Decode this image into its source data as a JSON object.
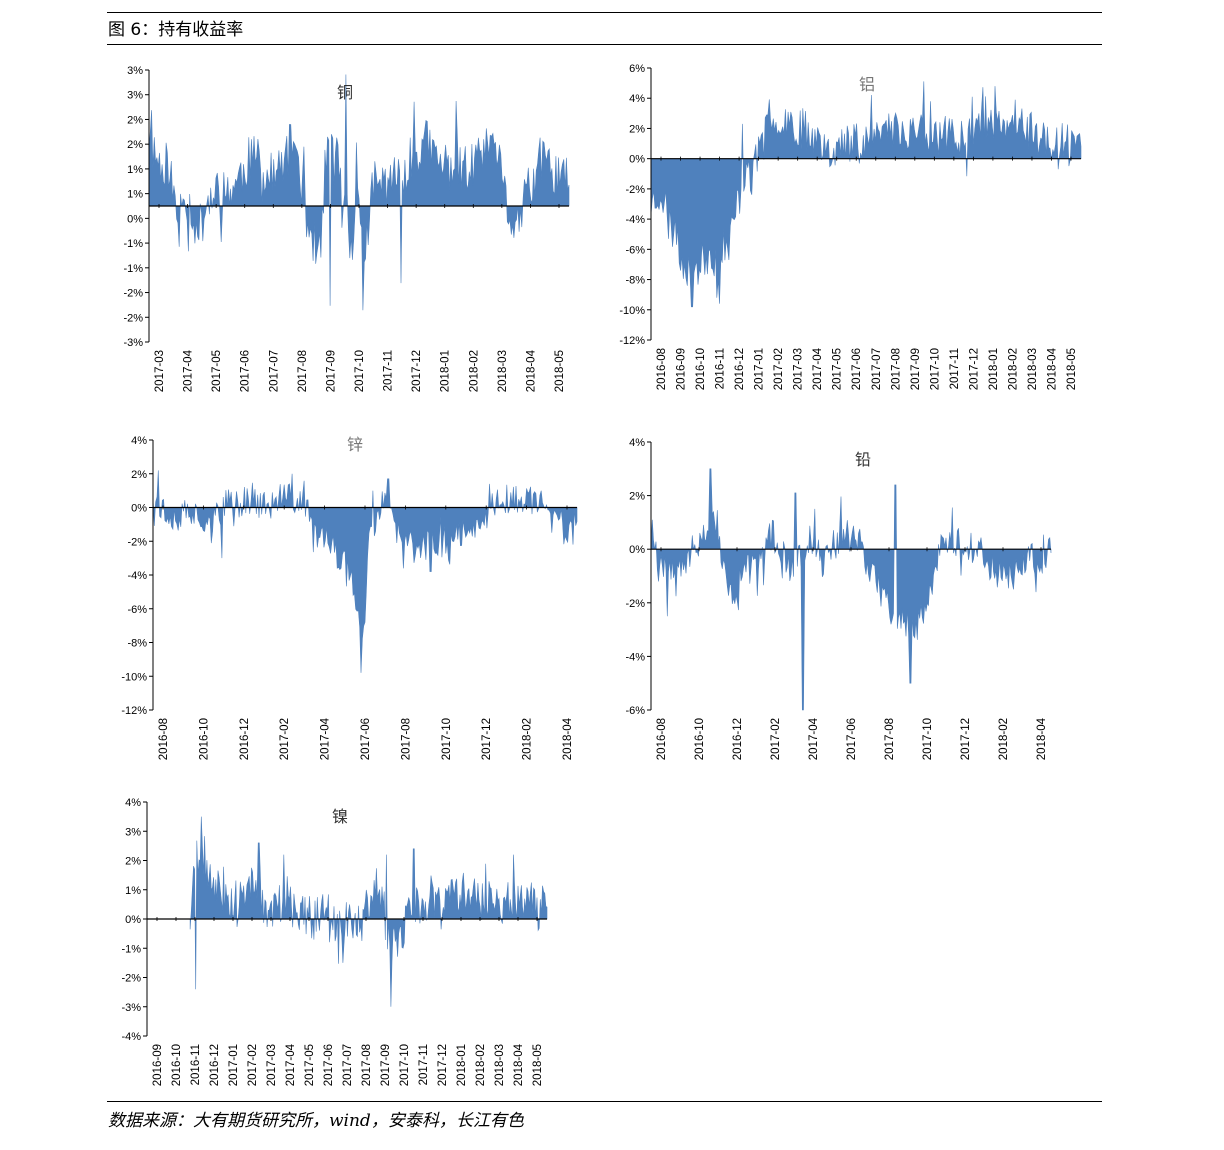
{
  "figure": {
    "title": "图 6：持有收益率",
    "source": "数据来源：大有期货研究所，wind，安泰科，长江有色"
  },
  "chart_data": [
    {
      "type": "area",
      "title": "铜",
      "color": "#4f81bd",
      "title_color": "#333333",
      "y_tick_labels": [
        "3%",
        "3%",
        "2%",
        "2%",
        "1%",
        "1%",
        "0%",
        "-1%",
        "-1%",
        "-2%",
        "-2%",
        "-3%"
      ],
      "ylim": [
        -3,
        3
      ],
      "x_tick_labels": [
        "2017-03",
        "2017-04",
        "2017-05",
        "2017-06",
        "2017-07",
        "2017-08",
        "2017-09",
        "2017-10",
        "2017-11",
        "2017-12",
        "2018-01",
        "2018-02",
        "2018-03",
        "2018-04",
        "2018-05"
      ],
      "xlim": [
        0,
        14.4
      ],
      "anchors": [
        [
          0,
          1.5
        ],
        [
          0.3,
          1.0
        ],
        [
          0.7,
          0.9
        ],
        [
          1.0,
          -0.5
        ],
        [
          1.2,
          0.4
        ],
        [
          1.7,
          -0.6
        ],
        [
          2.0,
          0.1
        ],
        [
          2.4,
          0.2
        ],
        [
          3.0,
          0.5
        ],
        [
          3.5,
          1.1
        ],
        [
          4.0,
          0.6
        ],
        [
          4.4,
          0.7
        ],
        [
          5.0,
          1.5
        ],
        [
          5.4,
          -0.2
        ],
        [
          5.8,
          -1.2
        ],
        [
          6.3,
          1.7
        ],
        [
          6.7,
          0.0
        ],
        [
          7.0,
          -0.8
        ],
        [
          7.2,
          0.2
        ],
        [
          7.4,
          -1.3
        ],
        [
          7.6,
          0.3
        ],
        [
          8.0,
          0.5
        ],
        [
          8.5,
          0.6
        ],
        [
          9.0,
          1.0
        ],
        [
          9.5,
          1.4
        ],
        [
          10.0,
          0.9
        ],
        [
          10.5,
          1.0
        ],
        [
          11.0,
          0.8
        ],
        [
          11.5,
          1.1
        ],
        [
          12.0,
          0.9
        ],
        [
          12.4,
          -0.4
        ],
        [
          12.7,
          -0.3
        ],
        [
          13.0,
          0.3
        ],
        [
          13.4,
          1.0
        ],
        [
          14.0,
          0.7
        ],
        [
          14.4,
          0.5
        ]
      ],
      "spikes": [
        [
          6.2,
          -2.2
        ],
        [
          6.75,
          2.9
        ],
        [
          7.35,
          -2.3
        ],
        [
          7.1,
          1.4
        ],
        [
          9.1,
          2.3
        ],
        [
          8.65,
          -1.7
        ],
        [
          1.05,
          -0.9
        ],
        [
          1.35,
          -1.0
        ],
        [
          11.8,
          1.6
        ]
      ],
      "noise": 0.55,
      "seed": 11
    },
    {
      "type": "area",
      "title": "铝",
      "color": "#4f81bd",
      "title_color": "#777777",
      "y_tick_labels": [
        "6%",
        "4%",
        "2%",
        "0%",
        "-2%",
        "-4%",
        "-6%",
        "-8%",
        "-10%",
        "-12%"
      ],
      "ylim": [
        -12,
        6
      ],
      "x_tick_labels": [
        "2016-08",
        "2016-09",
        "2016-10",
        "2016-11",
        "2016-12",
        "2017-01",
        "2017-02",
        "2017-03",
        "2017-04",
        "2017-05",
        "2017-06",
        "2017-07",
        "2017-08",
        "2017-09",
        "2017-10",
        "2017-11",
        "2017-12",
        "2018-01",
        "2018-02",
        "2018-03",
        "2018-04",
        "2018-05"
      ],
      "xlim": [
        0,
        21.5
      ],
      "anchors": [
        [
          0,
          -3.0
        ],
        [
          0.5,
          -2.0
        ],
        [
          1.0,
          -4.5
        ],
        [
          1.5,
          -6.5
        ],
        [
          2.0,
          -7.5
        ],
        [
          2.5,
          -7.0
        ],
        [
          3.0,
          -6.0
        ],
        [
          3.5,
          -7.5
        ],
        [
          4.0,
          -5.0
        ],
        [
          4.5,
          -2.0
        ],
        [
          4.7,
          -0.5
        ],
        [
          5.0,
          -1.5
        ],
        [
          5.3,
          0.3
        ],
        [
          5.6,
          1.0
        ],
        [
          6.0,
          2.5
        ],
        [
          6.5,
          3.0
        ],
        [
          7.0,
          2.5
        ],
        [
          7.5,
          2.0
        ],
        [
          8.0,
          1.8
        ],
        [
          8.5,
          1.0
        ],
        [
          9.0,
          0.8
        ],
        [
          9.5,
          0.9
        ],
        [
          10.0,
          1.0
        ],
        [
          10.5,
          1.3
        ],
        [
          11.0,
          1.6
        ],
        [
          11.5,
          1.8
        ],
        [
          12.0,
          2.3
        ],
        [
          12.5,
          1.8
        ],
        [
          13.0,
          2.0
        ],
        [
          13.5,
          1.8
        ],
        [
          14.0,
          1.8
        ],
        [
          14.5,
          1.4
        ],
        [
          15.0,
          1.5
        ],
        [
          15.5,
          1.5
        ],
        [
          16.0,
          2.2
        ],
        [
          16.5,
          2.5
        ],
        [
          17.0,
          2.8
        ],
        [
          17.5,
          1.6
        ],
        [
          18.0,
          2.2
        ],
        [
          18.5,
          1.4
        ],
        [
          19.0,
          1.7
        ],
        [
          19.5,
          1.5
        ],
        [
          20.0,
          1.1
        ],
        [
          20.5,
          1.0
        ],
        [
          21.0,
          0.8
        ],
        [
          21.5,
          0.7
        ]
      ],
      "spikes": [
        [
          2.05,
          -9.8
        ],
        [
          3.45,
          -9.6
        ],
        [
          3.3,
          -9.2
        ],
        [
          4.55,
          2.3
        ],
        [
          17.2,
          4.8
        ],
        [
          18.2,
          3.9
        ],
        [
          14.0,
          3.8
        ],
        [
          20.35,
          -0.7
        ]
      ],
      "noise": 1.4,
      "seed": 23
    },
    {
      "type": "area",
      "title": "锌",
      "color": "#4f81bd",
      "title_color": "#777777",
      "y_tick_labels": [
        "4%",
        "2%",
        "0%",
        "-2%",
        "-4%",
        "-6%",
        "-8%",
        "-10%",
        "-12%"
      ],
      "ylim": [
        -12,
        4
      ],
      "x_tick_labels": [
        "2016-08",
        "2016-10",
        "2016-12",
        "2017-02",
        "2017-04",
        "2017-06",
        "2017-08",
        "2017-10",
        "2017-12",
        "2018-02",
        "2018-04"
      ],
      "xlim": [
        0,
        11.0
      ],
      "anchors": [
        [
          0,
          1.0
        ],
        [
          0.3,
          -0.3
        ],
        [
          0.7,
          -0.5
        ],
        [
          1.0,
          -0.3
        ],
        [
          1.5,
          -0.8
        ],
        [
          2.0,
          0.4
        ],
        [
          2.5,
          0.5
        ],
        [
          3.0,
          0.0
        ],
        [
          3.5,
          0.6
        ],
        [
          4.0,
          0.2
        ],
        [
          4.2,
          -1.5
        ],
        [
          4.6,
          -2.2
        ],
        [
          5.0,
          -3.5
        ],
        [
          5.2,
          -4.5
        ],
        [
          5.35,
          -6.5
        ],
        [
          5.45,
          -8.0
        ],
        [
          5.6,
          -2.0
        ],
        [
          5.8,
          -1.0
        ],
        [
          6.0,
          0.5
        ],
        [
          6.3,
          -1.5
        ],
        [
          6.8,
          -2.5
        ],
        [
          7.3,
          -2.0
        ],
        [
          7.8,
          -1.8
        ],
        [
          8.3,
          -0.8
        ],
        [
          8.7,
          -0.3
        ],
        [
          9.0,
          0.5
        ],
        [
          9.5,
          0.5
        ],
        [
          10.0,
          0.3
        ],
        [
          10.3,
          -0.5
        ],
        [
          10.6,
          -1.5
        ],
        [
          11.0,
          -1.3
        ]
      ],
      "spikes": [
        [
          5.4,
          -9.8
        ],
        [
          0.15,
          2.2
        ],
        [
          3.6,
          2.0
        ],
        [
          1.8,
          -3.0
        ],
        [
          6.5,
          -3.6
        ],
        [
          7.2,
          -3.8
        ],
        [
          6.1,
          1.7
        ],
        [
          10.9,
          -2.2
        ],
        [
          5.7,
          1.0
        ]
      ],
      "noise": 0.9,
      "seed": 37
    },
    {
      "type": "area",
      "title": "铅",
      "color": "#4f81bd",
      "title_color": "#333333",
      "y_tick_labels": [
        "4%",
        "2%",
        "0%",
        "-2%",
        "-4%",
        "-6%"
      ],
      "ylim": [
        -6,
        4
      ],
      "x_tick_labels": [
        "2016-08",
        "2016-10",
        "2016-12",
        "2017-02",
        "2017-04",
        "2017-06",
        "2017-08",
        "2017-10",
        "2017-12",
        "2018-02",
        "2018-04"
      ],
      "xlim": [
        0,
        10.8
      ],
      "anchors": [
        [
          0,
          1.2
        ],
        [
          0.2,
          -0.4
        ],
        [
          0.5,
          -0.5
        ],
        [
          1.0,
          -0.4
        ],
        [
          1.5,
          0.8
        ],
        [
          1.8,
          1.0
        ],
        [
          2.0,
          -1.2
        ],
        [
          2.3,
          -2.2
        ],
        [
          2.6,
          -0.8
        ],
        [
          3.0,
          -0.5
        ],
        [
          3.3,
          0.7
        ],
        [
          3.6,
          -0.8
        ],
        [
          4.0,
          -0.4
        ],
        [
          4.3,
          0.6
        ],
        [
          4.6,
          -0.5
        ],
        [
          5.0,
          0.4
        ],
        [
          5.3,
          0.6
        ],
        [
          5.6,
          0.4
        ],
        [
          6.0,
          -1.0
        ],
        [
          6.3,
          -1.8
        ],
        [
          6.6,
          -2.5
        ],
        [
          6.9,
          -2.8
        ],
        [
          7.2,
          -2.8
        ],
        [
          7.5,
          -2.0
        ],
        [
          7.8,
          0.2
        ],
        [
          8.2,
          0.5
        ],
        [
          8.6,
          0.2
        ],
        [
          9.0,
          -0.3
        ],
        [
          9.3,
          -0.8
        ],
        [
          9.6,
          -0.8
        ],
        [
          9.9,
          -0.6
        ],
        [
          10.3,
          -0.4
        ],
        [
          10.6,
          -0.3
        ],
        [
          10.8,
          0.3
        ]
      ],
      "spikes": [
        [
          4.1,
          -6.0
        ],
        [
          1.6,
          3.0
        ],
        [
          6.6,
          2.4
        ],
        [
          7.0,
          -5.0
        ],
        [
          3.9,
          2.1
        ],
        [
          0.45,
          -2.5
        ],
        [
          9.8,
          -1.5
        ],
        [
          10.4,
          -1.6
        ]
      ],
      "noise": 0.65,
      "seed": 53
    },
    {
      "type": "area",
      "title": "镍",
      "color": "#4f81bd",
      "title_color": "#333333",
      "y_tick_labels": [
        "4%",
        "3%",
        "2%",
        "1%",
        "0%",
        "-1%",
        "-2%",
        "-3%",
        "-4%"
      ],
      "ylim": [
        -4,
        4
      ],
      "x_tick_labels": [
        "2016-09",
        "2016-10",
        "2016-11",
        "2016-12",
        "2017-01",
        "2017-02",
        "2017-03",
        "2017-04",
        "2017-05",
        "2017-06",
        "2017-07",
        "2017-08",
        "2017-09",
        "2017-10",
        "2017-11",
        "2017-12",
        "2018-01",
        "2018-02",
        "2018-03",
        "2018-04",
        "2018-05"
      ],
      "xlim": [
        0,
        20.4
      ],
      "start": 2.2,
      "anchors": [
        [
          2.2,
          0.0
        ],
        [
          2.5,
          2.0
        ],
        [
          2.8,
          1.8
        ],
        [
          3.2,
          1.5
        ],
        [
          3.6,
          1.0
        ],
        [
          4.0,
          0.8
        ],
        [
          4.5,
          0.7
        ],
        [
          5.0,
          0.9
        ],
        [
          5.5,
          1.2
        ],
        [
          6.0,
          0.4
        ],
        [
          6.5,
          0.2
        ],
        [
          7.0,
          0.8
        ],
        [
          7.5,
          0.3
        ],
        [
          8.0,
          0.3
        ],
        [
          8.5,
          0.0
        ],
        [
          9.0,
          0.2
        ],
        [
          9.5,
          0.2
        ],
        [
          10.0,
          -0.2
        ],
        [
          10.5,
          0.0
        ],
        [
          11.0,
          -0.1
        ],
        [
          11.5,
          1.2
        ],
        [
          12.0,
          0.8
        ],
        [
          12.3,
          -0.8
        ],
        [
          12.6,
          -1.0
        ],
        [
          13.0,
          -0.5
        ],
        [
          13.5,
          0.6
        ],
        [
          14.0,
          0.4
        ],
        [
          14.5,
          0.8
        ],
        [
          15.0,
          0.2
        ],
        [
          15.5,
          0.8
        ],
        [
          16.0,
          1.0
        ],
        [
          16.5,
          0.9
        ],
        [
          17.0,
          0.7
        ],
        [
          17.5,
          0.8
        ],
        [
          18.0,
          0.6
        ],
        [
          18.5,
          0.5
        ],
        [
          19.0,
          0.8
        ],
        [
          19.5,
          0.6
        ],
        [
          20.0,
          0.4
        ],
        [
          20.4,
          0.4
        ]
      ],
      "spikes": [
        [
          2.5,
          -2.4
        ],
        [
          2.75,
          3.5
        ],
        [
          12.45,
          -3.0
        ],
        [
          5.7,
          2.6
        ],
        [
          12.2,
          2.2
        ],
        [
          7.0,
          2.2
        ],
        [
          10.0,
          -1.5
        ],
        [
          13.6,
          2.4
        ],
        [
          18.7,
          2.2
        ]
      ],
      "noise": 0.75,
      "seed": 71
    }
  ]
}
